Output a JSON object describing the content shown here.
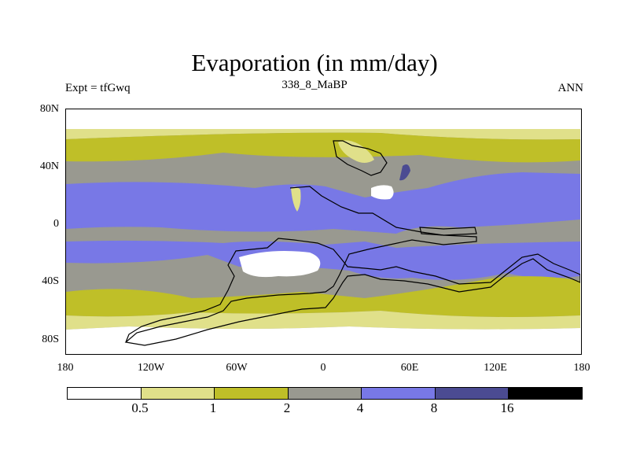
{
  "title": "Evaporation (in mm/day)",
  "left_label": "Expt = tfGwq",
  "center_label": "338_8_MaBP",
  "right_label": "ANN",
  "y_ticks": [
    "80N",
    "40N",
    "0",
    "40S",
    "80S"
  ],
  "x_ticks": [
    "180",
    "120W",
    "60W",
    "0",
    "60E",
    "120E",
    "180"
  ],
  "colorbar": {
    "colors": [
      "#ffffff",
      "#e0e08a",
      "#bfbf28",
      "#999990",
      "#7878e6",
      "#4b4b92",
      "#000000"
    ],
    "labels": [
      "0.5",
      "1",
      "2",
      "4",
      "8",
      "16"
    ]
  },
  "palette": {
    "lt05": "#ffffff",
    "r05_1": "#e0e08a",
    "r1_2": "#bfbf28",
    "r2_4": "#999990",
    "r4_8": "#7878e6",
    "r8_16": "#4b4b92"
  }
}
